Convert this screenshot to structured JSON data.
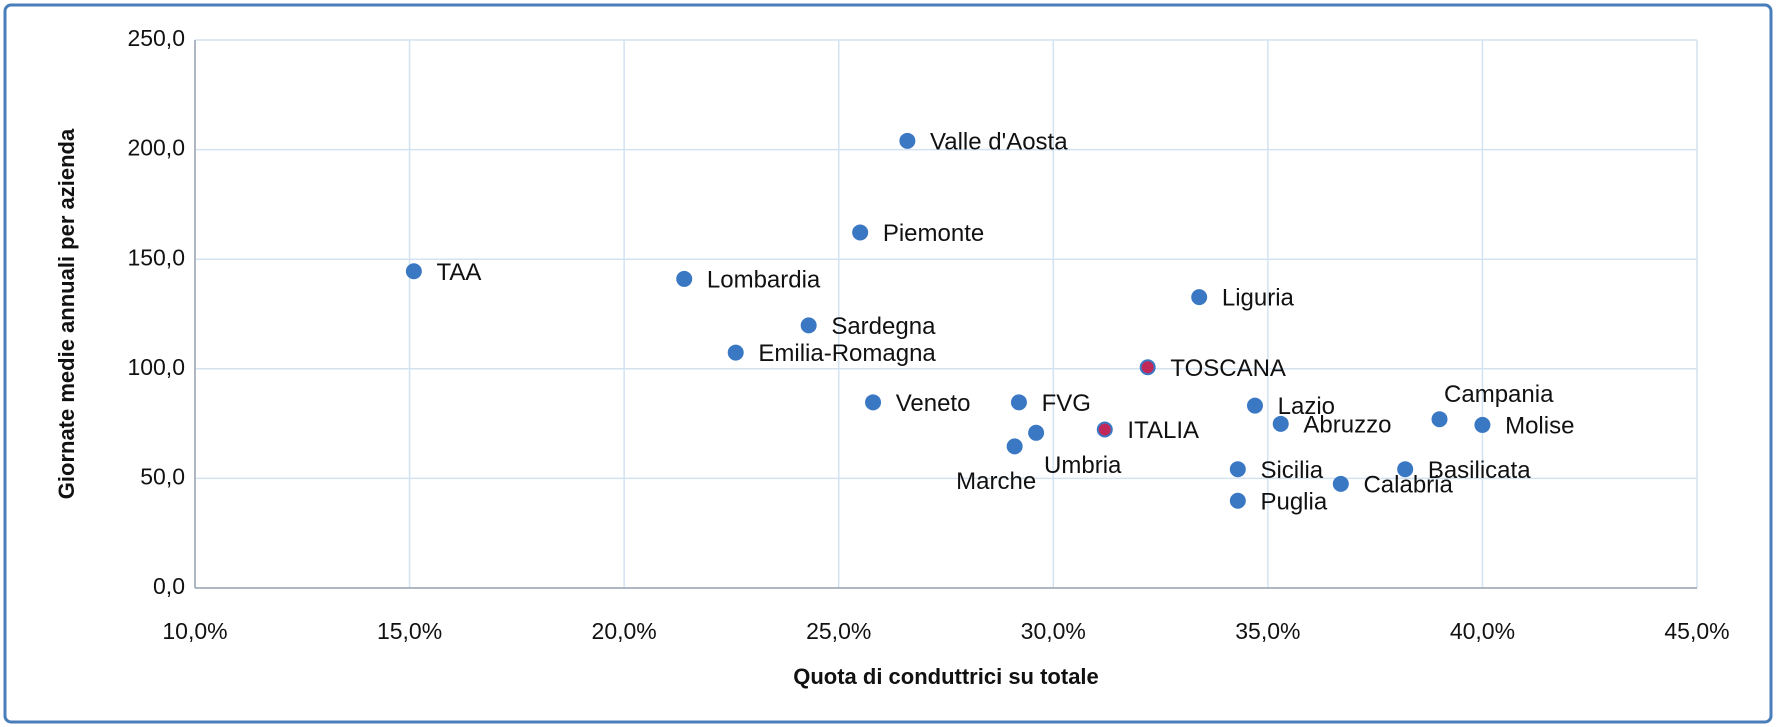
{
  "chart_data": {
    "type": "scatter",
    "x_label": "Quota di conduttrici su totale",
    "y_label": "Giornate medie  annuali per azienda",
    "point_labels": [
      "TAA",
      "Lombardia",
      "Valle d'Aosta",
      "Piemonte",
      "Sardegna",
      "Emilia-Romagna",
      "Veneto",
      "FVG",
      "Umbria",
      "Marche",
      "ITALIA",
      "TOSCANA",
      "Liguria",
      "Lazio",
      "Abruzzo",
      "Sicilia",
      "Puglia",
      "Calabria",
      "Basilicata",
      "Campania",
      "Molise"
    ],
    "x": [
      15.1,
      21.4,
      26.6,
      25.5,
      24.3,
      22.6,
      25.8,
      29.2,
      29.6,
      29.1,
      31.2,
      32.2,
      33.4,
      34.7,
      35.3,
      34.3,
      34.3,
      36.7,
      38.2,
      39.0,
      40.0
    ],
    "values": [
      144.5,
      141,
      204,
      162.2,
      119.8,
      107.4,
      84.7,
      84.7,
      70.8,
      64.6,
      72.3,
      100.7,
      132.7,
      83.2,
      74.9,
      54.2,
      39.8,
      47.5,
      54.2,
      77,
      74.4
    ],
    "colors": [
      "#3b78c4",
      "#3b78c4",
      "#3b78c4",
      "#3b78c4",
      "#3b78c4",
      "#3b78c4",
      "#3b78c4",
      "#3b78c4",
      "#3b78c4",
      "#3b78c4",
      "#c0285a",
      "#c0285a",
      "#3b78c4",
      "#3b78c4",
      "#3b78c4",
      "#3b78c4",
      "#3b78c4",
      "#3b78c4",
      "#3b78c4",
      "#3b78c4",
      "#3b78c4"
    ],
    "xlim": [
      10,
      45
    ],
    "xticks": [
      {
        "value": 10,
        "label": "10,0%"
      },
      {
        "value": 15,
        "label": "15,0%"
      },
      {
        "value": 20,
        "label": "20,0%"
      },
      {
        "value": 25,
        "label": "25,0%"
      },
      {
        "value": 30,
        "label": "30,0%"
      },
      {
        "value": 35,
        "label": "35,0%"
      },
      {
        "value": 40,
        "label": "40,0%"
      },
      {
        "value": 45,
        "label": "45,0%"
      }
    ],
    "ylim": [
      0,
      250
    ],
    "yticks": [
      {
        "value": 0,
        "label": "0,0"
      },
      {
        "value": 50,
        "label": "50,0"
      },
      {
        "value": 100,
        "label": "100,0"
      },
      {
        "value": 150,
        "label": "150,0"
      },
      {
        "value": 200,
        "label": "200,0"
      },
      {
        "value": 250,
        "label": "250,0"
      }
    ],
    "grid": true
  }
}
